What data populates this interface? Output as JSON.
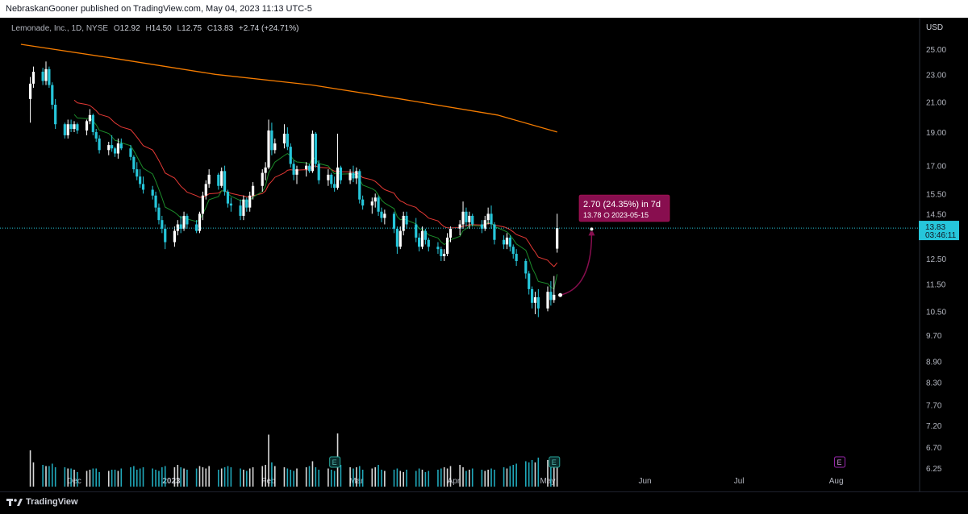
{
  "header": {
    "published": "NebraskanGooner published on TradingView.com, May 04, 2023 11:13 UTC-5"
  },
  "legend": {
    "symbol": "Lemonade, Inc., 1D, NYSE",
    "o_label": "O",
    "o": "12.92",
    "h_label": "H",
    "h": "14.50",
    "l_label": "L",
    "l": "12.75",
    "c_label": "C",
    "c": "13.83",
    "change": "+2.74 (+24.71%)"
  },
  "footer": {
    "brand": "TradingView"
  },
  "chart_data": {
    "type": "candlestick",
    "currency": "USD",
    "y_ticks": [
      "25.00",
      "23.00",
      "21.00",
      "19.00",
      "17.00",
      "15.50",
      "14.50",
      "13.83",
      "12.50",
      "11.50",
      "10.50",
      "9.70",
      "8.90",
      "8.30",
      "7.70",
      "7.20",
      "6.70",
      "6.25"
    ],
    "x_ticks": [
      {
        "label": "Dec",
        "date": "2022-12-01"
      },
      {
        "label": "2023",
        "date": "2023-01-01"
      },
      {
        "label": "Feb",
        "date": "2023-02-01"
      },
      {
        "label": "Mar",
        "date": "2023-03-01"
      },
      {
        "label": "Apr",
        "date": "2023-04-01"
      },
      {
        "label": "May",
        "date": "2023-05-01"
      },
      {
        "label": "Jun",
        "date": "2023-06-01"
      },
      {
        "label": "Jul",
        "date": "2023-07-01"
      },
      {
        "label": "Aug",
        "date": "2023-08-01"
      }
    ],
    "price_label": {
      "value": "13.83",
      "countdown": "03:46:11",
      "color": "#26c6da"
    },
    "projection": {
      "line1": "2.70 (24.35%) in 7d",
      "line2": "13.78",
      "line2_date": "2023-05-15",
      "from_price": 11.08,
      "to_price": 13.78,
      "from_date": "2023-05-05",
      "to_date": "2023-05-15",
      "color": "#880e4f"
    },
    "earnings": [
      {
        "date": "2023-02-22",
        "label": "E"
      },
      {
        "date": "2023-05-03",
        "label": "E"
      },
      {
        "date": "2023-08-02",
        "label": "E"
      }
    ],
    "colors": {
      "up": "#ffffff",
      "down": "#26c6da",
      "ema_short": "#1b8a2a",
      "ema_mid": "#e53935",
      "ema_long": "#f57c00"
    },
    "ema_long": [
      {
        "date": "2022-11-14",
        "value": 25.4
      },
      {
        "date": "2022-12-15",
        "value": 24.2
      },
      {
        "date": "2023-01-15",
        "value": 23.0
      },
      {
        "date": "2023-02-15",
        "value": 22.2
      },
      {
        "date": "2023-03-15",
        "value": 21.2
      },
      {
        "date": "2023-04-15",
        "value": 20.1
      },
      {
        "date": "2023-05-04",
        "value": 19.0
      }
    ],
    "candles": [
      {
        "o": 21.2,
        "h": 22.8,
        "l": 19.6,
        "c": 22.3
      },
      {
        "o": 22.3,
        "h": 23.6,
        "l": 22.0,
        "c": 23.2
      },
      {
        "o": 23.2,
        "h": 23.5,
        "l": 22.2,
        "c": 22.5
      },
      {
        "o": 22.5,
        "h": 24.0,
        "l": 22.2,
        "c": 23.4
      },
      {
        "o": 23.4,
        "h": 23.6,
        "l": 22.0,
        "c": 22.2
      },
      {
        "o": 22.2,
        "h": 22.4,
        "l": 20.5,
        "c": 20.8
      },
      {
        "o": 20.8,
        "h": 21.2,
        "l": 19.2,
        "c": 19.5
      },
      {
        "o": 19.5,
        "h": 19.6,
        "l": 18.6,
        "c": 18.8
      },
      {
        "o": 18.8,
        "h": 19.8,
        "l": 18.6,
        "c": 19.5
      },
      {
        "o": 19.5,
        "h": 19.8,
        "l": 19.0,
        "c": 19.2
      },
      {
        "o": 19.2,
        "h": 19.7,
        "l": 19.0,
        "c": 19.5
      },
      {
        "o": 19.5,
        "h": 19.6,
        "l": 18.9,
        "c": 19.1
      },
      {
        "o": 19.1,
        "h": 19.8,
        "l": 18.8,
        "c": 19.7
      },
      {
        "o": 19.7,
        "h": 20.5,
        "l": 19.5,
        "c": 20.1
      },
      {
        "o": 20.1,
        "h": 20.2,
        "l": 18.8,
        "c": 19.0
      },
      {
        "o": 19.0,
        "h": 19.2,
        "l": 18.4,
        "c": 18.6
      },
      {
        "o": 18.6,
        "h": 18.8,
        "l": 17.7,
        "c": 17.9
      },
      {
        "o": 17.9,
        "h": 18.4,
        "l": 17.6,
        "c": 18.2
      },
      {
        "o": 18.2,
        "h": 18.8,
        "l": 17.8,
        "c": 18.0
      },
      {
        "o": 18.0,
        "h": 18.1,
        "l": 17.5,
        "c": 17.7
      },
      {
        "o": 17.7,
        "h": 18.6,
        "l": 17.4,
        "c": 18.3
      },
      {
        "o": 18.3,
        "h": 18.6,
        "l": 17.9,
        "c": 18.0
      },
      {
        "o": 18.0,
        "h": 18.2,
        "l": 17.3,
        "c": 17.5
      },
      {
        "o": 17.5,
        "h": 17.6,
        "l": 16.6,
        "c": 16.8
      },
      {
        "o": 16.8,
        "h": 17.2,
        "l": 16.2,
        "c": 16.4
      },
      {
        "o": 16.4,
        "h": 16.8,
        "l": 15.8,
        "c": 16.0
      },
      {
        "o": 16.0,
        "h": 16.4,
        "l": 15.5,
        "c": 15.7
      },
      {
        "o": 15.7,
        "h": 15.9,
        "l": 15.2,
        "c": 15.4
      },
      {
        "o": 15.4,
        "h": 15.6,
        "l": 14.6,
        "c": 14.8
      },
      {
        "o": 14.8,
        "h": 15.0,
        "l": 14.0,
        "c": 14.2
      },
      {
        "o": 14.2,
        "h": 14.4,
        "l": 13.6,
        "c": 13.8
      },
      {
        "o": 13.8,
        "h": 14.0,
        "l": 12.9,
        "c": 13.2
      },
      {
        "o": 13.2,
        "h": 13.9,
        "l": 13.0,
        "c": 13.7
      },
      {
        "o": 13.7,
        "h": 14.2,
        "l": 13.5,
        "c": 14.0
      },
      {
        "o": 14.0,
        "h": 14.4,
        "l": 13.6,
        "c": 13.8
      },
      {
        "o": 13.8,
        "h": 14.6,
        "l": 13.7,
        "c": 14.4
      },
      {
        "o": 14.4,
        "h": 14.5,
        "l": 13.8,
        "c": 14.0
      },
      {
        "o": 14.0,
        "h": 14.2,
        "l": 13.6,
        "c": 13.7
      },
      {
        "o": 13.7,
        "h": 14.6,
        "l": 13.6,
        "c": 14.5
      },
      {
        "o": 14.5,
        "h": 15.6,
        "l": 14.2,
        "c": 15.4
      },
      {
        "o": 15.4,
        "h": 16.2,
        "l": 15.2,
        "c": 16.0
      },
      {
        "o": 16.0,
        "h": 16.8,
        "l": 15.8,
        "c": 16.5
      },
      {
        "o": 16.5,
        "h": 16.6,
        "l": 15.7,
        "c": 15.9
      },
      {
        "o": 15.9,
        "h": 16.9,
        "l": 15.8,
        "c": 16.7
      },
      {
        "o": 16.7,
        "h": 17.0,
        "l": 15.4,
        "c": 15.6
      },
      {
        "o": 15.6,
        "h": 15.7,
        "l": 14.8,
        "c": 15.0
      },
      {
        "o": 15.0,
        "h": 15.3,
        "l": 14.6,
        "c": 14.9
      },
      {
        "o": 14.9,
        "h": 15.2,
        "l": 14.2,
        "c": 14.4
      },
      {
        "o": 14.4,
        "h": 15.4,
        "l": 14.2,
        "c": 15.2
      },
      {
        "o": 15.2,
        "h": 15.3,
        "l": 14.6,
        "c": 14.8
      },
      {
        "o": 14.8,
        "h": 15.6,
        "l": 14.6,
        "c": 15.4
      },
      {
        "o": 15.4,
        "h": 16.1,
        "l": 15.2,
        "c": 15.9
      },
      {
        "o": 15.9,
        "h": 16.8,
        "l": 15.6,
        "c": 16.6
      },
      {
        "o": 16.6,
        "h": 17.2,
        "l": 16.2,
        "c": 16.9
      },
      {
        "o": 16.9,
        "h": 19.8,
        "l": 16.8,
        "c": 19.1
      },
      {
        "o": 19.1,
        "h": 19.6,
        "l": 17.6,
        "c": 17.9
      },
      {
        "o": 17.9,
        "h": 18.6,
        "l": 17.7,
        "c": 18.3
      },
      {
        "o": 18.3,
        "h": 19.5,
        "l": 18.0,
        "c": 18.9
      },
      {
        "o": 18.9,
        "h": 19.3,
        "l": 17.9,
        "c": 18.1
      },
      {
        "o": 18.1,
        "h": 18.3,
        "l": 16.9,
        "c": 17.1
      },
      {
        "o": 17.1,
        "h": 17.3,
        "l": 16.2,
        "c": 16.5
      },
      {
        "o": 16.5,
        "h": 17.0,
        "l": 16.0,
        "c": 16.8
      },
      {
        "o": 16.8,
        "h": 17.2,
        "l": 16.4,
        "c": 17.0
      },
      {
        "o": 17.0,
        "h": 17.1,
        "l": 16.6,
        "c": 16.7
      },
      {
        "o": 16.7,
        "h": 19.1,
        "l": 16.6,
        "c": 18.9
      },
      {
        "o": 18.9,
        "h": 19.0,
        "l": 16.9,
        "c": 17.1
      },
      {
        "o": 17.1,
        "h": 17.3,
        "l": 16.0,
        "c": 16.2
      },
      {
        "o": 16.2,
        "h": 16.8,
        "l": 15.9,
        "c": 16.5
      },
      {
        "o": 16.5,
        "h": 16.6,
        "l": 15.8,
        "c": 16.0
      },
      {
        "o": 16.0,
        "h": 16.4,
        "l": 15.6,
        "c": 15.8
      },
      {
        "o": 15.8,
        "h": 18.9,
        "l": 15.7,
        "c": 16.9
      },
      {
        "o": 16.9,
        "h": 17.0,
        "l": 16.0,
        "c": 16.2
      },
      {
        "o": 16.2,
        "h": 16.8,
        "l": 16.0,
        "c": 16.6
      },
      {
        "o": 16.6,
        "h": 17.0,
        "l": 16.1,
        "c": 16.3
      },
      {
        "o": 16.3,
        "h": 16.9,
        "l": 16.0,
        "c": 16.7
      },
      {
        "o": 16.7,
        "h": 16.8,
        "l": 15.0,
        "c": 15.2
      },
      {
        "o": 15.2,
        "h": 15.4,
        "l": 14.7,
        "c": 14.9
      },
      {
        "o": 14.9,
        "h": 15.3,
        "l": 14.5,
        "c": 15.1
      },
      {
        "o": 15.1,
        "h": 15.5,
        "l": 14.8,
        "c": 15.3
      },
      {
        "o": 15.3,
        "h": 15.4,
        "l": 14.4,
        "c": 14.6
      },
      {
        "o": 14.6,
        "h": 14.8,
        "l": 14.1,
        "c": 14.3
      },
      {
        "o": 14.3,
        "h": 14.7,
        "l": 14.0,
        "c": 14.5
      },
      {
        "o": 14.5,
        "h": 14.6,
        "l": 13.6,
        "c": 13.8
      },
      {
        "o": 13.8,
        "h": 13.9,
        "l": 12.7,
        "c": 13.0
      },
      {
        "o": 13.0,
        "h": 13.9,
        "l": 12.9,
        "c": 13.7
      },
      {
        "o": 13.7,
        "h": 14.6,
        "l": 13.5,
        "c": 14.4
      },
      {
        "o": 14.4,
        "h": 14.6,
        "l": 13.8,
        "c": 14.0
      },
      {
        "o": 14.0,
        "h": 14.3,
        "l": 13.2,
        "c": 13.4
      },
      {
        "o": 13.4,
        "h": 13.6,
        "l": 12.8,
        "c": 13.0
      },
      {
        "o": 13.0,
        "h": 13.9,
        "l": 12.9,
        "c": 13.7
      },
      {
        "o": 13.7,
        "h": 13.8,
        "l": 13.1,
        "c": 13.3
      },
      {
        "o": 13.3,
        "h": 13.4,
        "l": 12.8,
        "c": 13.0
      },
      {
        "o": 13.0,
        "h": 13.2,
        "l": 12.7,
        "c": 12.9
      },
      {
        "o": 12.9,
        "h": 13.0,
        "l": 12.4,
        "c": 12.6
      },
      {
        "o": 12.6,
        "h": 12.9,
        "l": 12.4,
        "c": 12.7
      },
      {
        "o": 12.7,
        "h": 13.6,
        "l": 12.6,
        "c": 13.4
      },
      {
        "o": 13.4,
        "h": 13.9,
        "l": 13.2,
        "c": 13.8
      },
      {
        "o": 13.8,
        "h": 14.2,
        "l": 13.5,
        "c": 14.0
      },
      {
        "o": 14.0,
        "h": 15.1,
        "l": 13.8,
        "c": 14.6
      },
      {
        "o": 14.6,
        "h": 14.8,
        "l": 13.9,
        "c": 14.1
      },
      {
        "o": 14.1,
        "h": 14.6,
        "l": 13.8,
        "c": 14.4
      },
      {
        "o": 14.4,
        "h": 14.5,
        "l": 13.9,
        "c": 14.0
      },
      {
        "o": 14.0,
        "h": 14.2,
        "l": 13.6,
        "c": 13.8
      },
      {
        "o": 13.8,
        "h": 14.4,
        "l": 13.7,
        "c": 14.2
      },
      {
        "o": 14.2,
        "h": 14.8,
        "l": 14.0,
        "c": 14.5
      },
      {
        "o": 14.5,
        "h": 14.9,
        "l": 13.8,
        "c": 14.0
      },
      {
        "o": 14.0,
        "h": 14.1,
        "l": 13.1,
        "c": 13.3
      },
      {
        "o": 13.3,
        "h": 13.5,
        "l": 12.9,
        "c": 13.1
      },
      {
        "o": 13.1,
        "h": 13.6,
        "l": 12.9,
        "c": 13.4
      },
      {
        "o": 13.4,
        "h": 13.5,
        "l": 12.8,
        "c": 13.0
      },
      {
        "o": 13.0,
        "h": 13.1,
        "l": 12.5,
        "c": 12.7
      },
      {
        "o": 12.7,
        "h": 12.9,
        "l": 12.2,
        "c": 12.4
      },
      {
        "o": 12.4,
        "h": 12.5,
        "l": 11.7,
        "c": 11.9
      },
      {
        "o": 11.9,
        "h": 12.0,
        "l": 11.1,
        "c": 11.3
      },
      {
        "o": 11.3,
        "h": 11.4,
        "l": 10.6,
        "c": 10.8
      },
      {
        "o": 10.8,
        "h": 11.2,
        "l": 10.4,
        "c": 11.0
      },
      {
        "o": 11.0,
        "h": 11.3,
        "l": 10.3,
        "c": 10.6
      },
      {
        "o": 10.6,
        "h": 11.4,
        "l": 10.5,
        "c": 11.2
      },
      {
        "o": 11.2,
        "h": 11.6,
        "l": 10.7,
        "c": 10.9
      },
      {
        "o": 10.9,
        "h": 11.8,
        "l": 10.8,
        "c": 11.09
      },
      {
        "o": 12.92,
        "h": 14.5,
        "l": 12.75,
        "c": 13.83
      }
    ],
    "volumes": [
      0.3,
      0.2,
      0.18,
      0.17,
      0.17,
      0.19,
      0.16,
      0.16,
      0.15,
      0.15,
      0.14,
      0.12,
      0.13,
      0.14,
      0.15,
      0.15,
      0.12,
      0.13,
      0.14,
      0.14,
      0.13,
      0.15,
      0.16,
      0.17,
      0.14,
      0.15,
      0.16,
      0.15,
      0.14,
      0.13,
      0.16,
      0.17,
      0.16,
      0.18,
      0.16,
      0.15,
      0.14,
      0.15,
      0.17,
      0.16,
      0.15,
      0.17,
      0.14,
      0.15,
      0.16,
      0.17,
      0.16,
      0.15,
      0.14,
      0.13,
      0.15,
      0.16,
      0.17,
      0.18,
      0.43,
      0.2,
      0.17,
      0.16,
      0.15,
      0.14,
      0.13,
      0.15,
      0.16,
      0.17,
      0.21,
      0.16,
      0.14,
      0.15,
      0.14,
      0.13,
      0.44,
      0.18,
      0.16,
      0.15,
      0.16,
      0.17,
      0.14,
      0.15,
      0.16,
      0.18,
      0.14,
      0.13,
      0.14,
      0.15,
      0.13,
      0.12,
      0.14,
      0.13,
      0.15,
      0.14,
      0.12,
      0.13,
      0.14,
      0.15,
      0.16,
      0.15,
      0.17,
      0.18,
      0.16,
      0.13,
      0.14,
      0.15,
      0.14,
      0.13,
      0.14,
      0.15,
      0.14,
      0.16,
      0.15,
      0.17,
      0.18,
      0.19,
      0.21,
      0.2,
      0.22,
      0.2,
      0.24,
      0.22,
      0.25,
      0.2,
      0.23,
      0.22,
      0.65
    ]
  }
}
